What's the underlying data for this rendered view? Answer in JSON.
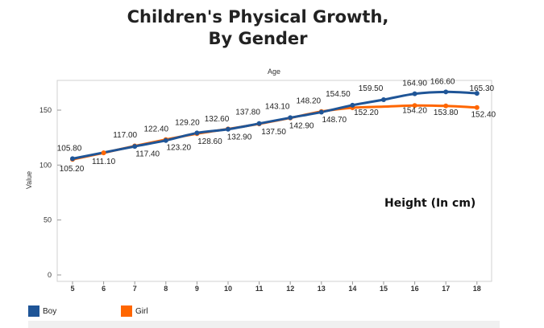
{
  "title_lines": [
    "Children's Physical Growth,",
    "By Gender"
  ],
  "chart_data": {
    "type": "line",
    "title": "Children's Physical Growth, By Gender",
    "top_axis_label": "Age",
    "ylabel": "Value",
    "annotation": "Height (In cm)",
    "categories": [
      "5",
      "6",
      "7",
      "8",
      "9",
      "10",
      "11",
      "12",
      "13",
      "14",
      "15",
      "16",
      "17",
      "18"
    ],
    "ylim": [
      0,
      175
    ],
    "yticks": [
      0,
      50,
      100,
      150
    ],
    "grid": false,
    "legend_placement": "bottom-left",
    "series": [
      {
        "name": "Boy",
        "color": "#1f5597",
        "values": [
          105.8,
          null,
          117.0,
          122.4,
          129.2,
          132.6,
          137.8,
          143.1,
          148.2,
          154.5,
          159.5,
          164.9,
          166.6,
          165.3
        ],
        "labels": [
          "105.80",
          "",
          "117.00",
          "122.40",
          "129.20",
          "132.60",
          "137.80",
          "143.10",
          "148.20",
          "154.50",
          "159.50",
          "164.90",
          "166.60",
          "165.30"
        ]
      },
      {
        "name": "Girl",
        "color": "#ff6600",
        "values": [
          105.2,
          111.1,
          117.4,
          123.2,
          128.6,
          132.9,
          137.5,
          142.9,
          148.7,
          152.2,
          null,
          154.2,
          153.8,
          152.4
        ],
        "labels": [
          "105.20",
          "111.10",
          "117.40",
          "123.20",
          "128.60",
          "132.90",
          "137.50",
          "142.90",
          "148.70",
          "152.20",
          "",
          "154.20",
          "153.80",
          "152.40"
        ]
      }
    ]
  }
}
